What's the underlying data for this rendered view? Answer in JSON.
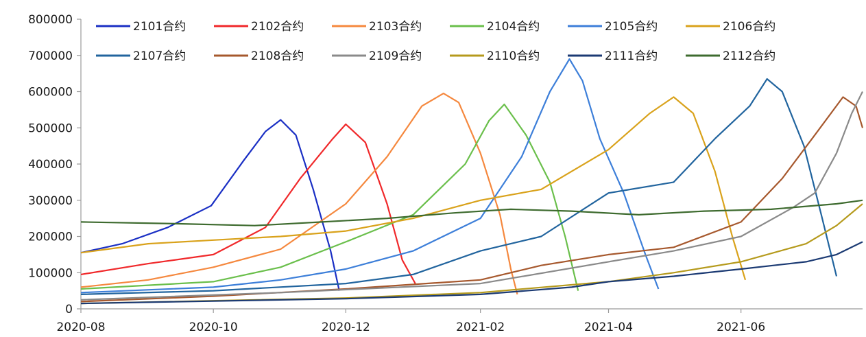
{
  "chart_data": {
    "type": "line",
    "title": "",
    "xlabel": "",
    "ylabel": "",
    "ylim": [
      0,
      800000
    ],
    "y_ticks": [
      "0",
      "100000",
      "200000",
      "300000",
      "400000",
      "500000",
      "600000",
      "700000",
      "800000"
    ],
    "x_ticks": [
      "2020-08",
      "2020-10",
      "2020-12",
      "2021-02",
      "2021-04",
      "2021-06"
    ],
    "x_range": [
      "2020-08-01",
      "2021-07-27"
    ],
    "grid": false,
    "legend_position": "top",
    "series": [
      {
        "name": "2101合约",
        "color": "#1a2fc4",
        "points": [
          [
            "2020-08-01",
            155000
          ],
          [
            "2020-08-20",
            180000
          ],
          [
            "2020-09-10",
            225000
          ],
          [
            "2020-09-30",
            285000
          ],
          [
            "2020-10-15",
            410000
          ],
          [
            "2020-10-25",
            490000
          ],
          [
            "2020-11-01",
            522000
          ],
          [
            "2020-11-08",
            480000
          ],
          [
            "2020-11-16",
            330000
          ],
          [
            "2020-11-24",
            160000
          ],
          [
            "2020-11-28",
            50000
          ]
        ]
      },
      {
        "name": "2102合约",
        "color": "#f0282a",
        "points": [
          [
            "2020-08-01",
            95000
          ],
          [
            "2020-09-01",
            125000
          ],
          [
            "2020-10-01",
            150000
          ],
          [
            "2020-10-25",
            225000
          ],
          [
            "2020-11-10",
            360000
          ],
          [
            "2020-11-25",
            470000
          ],
          [
            "2020-12-01",
            510000
          ],
          [
            "2020-12-10",
            460000
          ],
          [
            "2020-12-20",
            290000
          ],
          [
            "2020-12-27",
            135000
          ],
          [
            "2021-01-02",
            70000
          ]
        ]
      },
      {
        "name": "2103合约",
        "color": "#f5883e",
        "points": [
          [
            "2020-08-01",
            60000
          ],
          [
            "2020-09-01",
            80000
          ],
          [
            "2020-10-01",
            115000
          ],
          [
            "2020-11-01",
            165000
          ],
          [
            "2020-12-01",
            290000
          ],
          [
            "2020-12-20",
            420000
          ],
          [
            "2021-01-05",
            560000
          ],
          [
            "2021-01-15",
            595000
          ],
          [
            "2021-01-22",
            570000
          ],
          [
            "2021-02-01",
            430000
          ],
          [
            "2021-02-10",
            260000
          ],
          [
            "2021-02-15",
            110000
          ],
          [
            "2021-02-18",
            40000
          ]
        ]
      },
      {
        "name": "2104合约",
        "color": "#6abf4b",
        "points": [
          [
            "2020-08-01",
            55000
          ],
          [
            "2020-10-01",
            75000
          ],
          [
            "2020-11-01",
            115000
          ],
          [
            "2020-12-01",
            185000
          ],
          [
            "2021-01-01",
            260000
          ],
          [
            "2021-01-25",
            400000
          ],
          [
            "2021-02-05",
            520000
          ],
          [
            "2021-02-12",
            565000
          ],
          [
            "2021-02-22",
            480000
          ],
          [
            "2021-03-05",
            350000
          ],
          [
            "2021-03-12",
            200000
          ],
          [
            "2021-03-18",
            50000
          ]
        ]
      },
      {
        "name": "2105合约",
        "color": "#3d7fd9",
        "points": [
          [
            "2020-08-01",
            45000
          ],
          [
            "2020-10-01",
            60000
          ],
          [
            "2020-11-01",
            80000
          ],
          [
            "2020-12-01",
            110000
          ],
          [
            "2021-01-01",
            160000
          ],
          [
            "2021-02-01",
            250000
          ],
          [
            "2021-02-20",
            420000
          ],
          [
            "2021-03-05",
            600000
          ],
          [
            "2021-03-14",
            690000
          ],
          [
            "2021-03-20",
            630000
          ],
          [
            "2021-03-28",
            470000
          ],
          [
            "2021-04-08",
            320000
          ],
          [
            "2021-04-18",
            150000
          ],
          [
            "2021-04-24",
            55000
          ]
        ]
      },
      {
        "name": "2106合约",
        "color": "#d9a21b",
        "points": [
          [
            "2020-08-01",
            155000
          ],
          [
            "2020-09-01",
            180000
          ],
          [
            "2020-10-01",
            190000
          ],
          [
            "2020-11-01",
            200000
          ],
          [
            "2020-12-01",
            215000
          ],
          [
            "2021-01-01",
            250000
          ],
          [
            "2021-02-01",
            300000
          ],
          [
            "2021-03-01",
            330000
          ],
          [
            "2021-04-01",
            440000
          ],
          [
            "2021-04-20",
            540000
          ],
          [
            "2021-05-01",
            585000
          ],
          [
            "2021-05-10",
            540000
          ],
          [
            "2021-05-20",
            380000
          ],
          [
            "2021-05-28",
            200000
          ],
          [
            "2021-06-03",
            80000
          ]
        ]
      },
      {
        "name": "2107合约",
        "color": "#21649e",
        "points": [
          [
            "2020-08-01",
            40000
          ],
          [
            "2020-10-01",
            50000
          ],
          [
            "2020-12-01",
            70000
          ],
          [
            "2021-01-01",
            95000
          ],
          [
            "2021-02-01",
            160000
          ],
          [
            "2021-03-01",
            200000
          ],
          [
            "2021-04-01",
            320000
          ],
          [
            "2021-05-01",
            350000
          ],
          [
            "2021-05-20",
            470000
          ],
          [
            "2021-06-05",
            560000
          ],
          [
            "2021-06-13",
            635000
          ],
          [
            "2021-06-20",
            600000
          ],
          [
            "2021-06-30",
            450000
          ],
          [
            "2021-07-08",
            260000
          ],
          [
            "2021-07-15",
            90000
          ]
        ]
      },
      {
        "name": "2108合约",
        "color": "#a6582d",
        "points": [
          [
            "2020-08-01",
            20000
          ],
          [
            "2020-10-01",
            35000
          ],
          [
            "2020-12-01",
            55000
          ],
          [
            "2021-02-01",
            80000
          ],
          [
            "2021-03-01",
            120000
          ],
          [
            "2021-04-01",
            150000
          ],
          [
            "2021-05-01",
            170000
          ],
          [
            "2021-06-01",
            240000
          ],
          [
            "2021-06-20",
            360000
          ],
          [
            "2021-07-05",
            480000
          ],
          [
            "2021-07-18",
            585000
          ],
          [
            "2021-07-24",
            560000
          ],
          [
            "2021-07-27",
            500000
          ]
        ]
      },
      {
        "name": "2109合约",
        "color": "#8a8a8a",
        "points": [
          [
            "2020-08-01",
            25000
          ],
          [
            "2020-11-01",
            45000
          ],
          [
            "2021-02-01",
            70000
          ],
          [
            "2021-04-01",
            130000
          ],
          [
            "2021-05-01",
            160000
          ],
          [
            "2021-06-01",
            200000
          ],
          [
            "2021-06-25",
            280000
          ],
          [
            "2021-07-05",
            320000
          ],
          [
            "2021-07-15",
            430000
          ],
          [
            "2021-07-22",
            540000
          ],
          [
            "2021-07-27",
            600000
          ]
        ]
      },
      {
        "name": "2110合约",
        "color": "#b59a1c",
        "points": [
          [
            "2020-08-01",
            15000
          ],
          [
            "2020-12-01",
            30000
          ],
          [
            "2021-02-01",
            45000
          ],
          [
            "2021-04-01",
            75000
          ],
          [
            "2021-05-01",
            100000
          ],
          [
            "2021-06-01",
            130000
          ],
          [
            "2021-07-01",
            180000
          ],
          [
            "2021-07-15",
            230000
          ],
          [
            "2021-07-27",
            290000
          ]
        ]
      },
      {
        "name": "2111合约",
        "color": "#1b3a73",
        "points": [
          [
            "2020-08-01",
            15000
          ],
          [
            "2020-12-01",
            28000
          ],
          [
            "2021-02-01",
            40000
          ],
          [
            "2021-03-15",
            60000
          ],
          [
            "2021-04-01",
            75000
          ],
          [
            "2021-05-01",
            90000
          ],
          [
            "2021-06-01",
            110000
          ],
          [
            "2021-07-01",
            130000
          ],
          [
            "2021-07-15",
            150000
          ],
          [
            "2021-07-27",
            185000
          ]
        ]
      },
      {
        "name": "2112合约",
        "color": "#3e6b2f",
        "points": [
          [
            "2020-08-01",
            240000
          ],
          [
            "2020-09-15",
            235000
          ],
          [
            "2020-10-20",
            230000
          ],
          [
            "2020-11-20",
            240000
          ],
          [
            "2020-12-20",
            250000
          ],
          [
            "2021-01-20",
            265000
          ],
          [
            "2021-02-15",
            275000
          ],
          [
            "2021-03-15",
            270000
          ],
          [
            "2021-04-15",
            260000
          ],
          [
            "2021-05-15",
            270000
          ],
          [
            "2021-06-15",
            275000
          ],
          [
            "2021-07-15",
            290000
          ],
          [
            "2021-07-27",
            300000
          ]
        ]
      }
    ]
  }
}
